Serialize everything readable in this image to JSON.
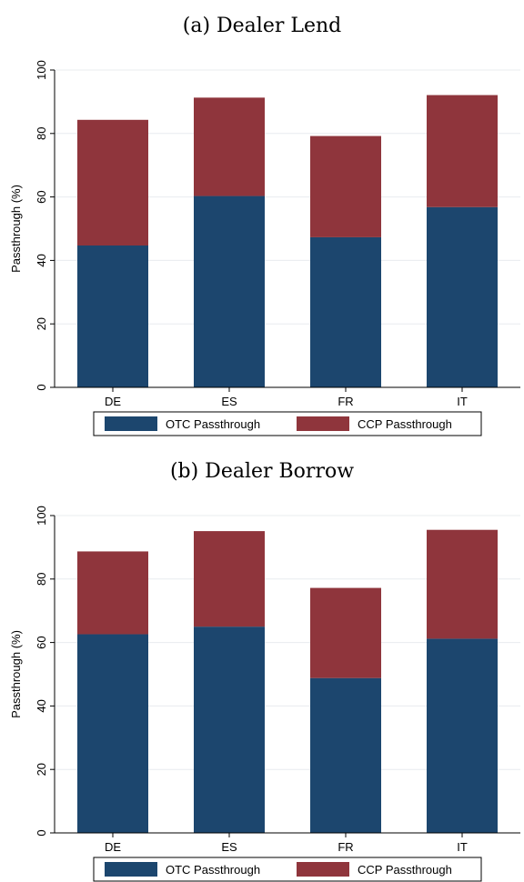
{
  "colors": {
    "otc": "#1c466e",
    "ccp": "#8f353c",
    "grid": "#e8ecef"
  },
  "chart_data": [
    {
      "type": "bar",
      "stacked": true,
      "title": "(a) Dealer Lend",
      "ylabel": "Passthrough (%)",
      "xlabel": "",
      "categories": [
        "DE",
        "ES",
        "FR",
        "IT"
      ],
      "ylim": [
        0,
        100
      ],
      "yticks": [
        0,
        20,
        40,
        60,
        80,
        100
      ],
      "grid": true,
      "legend_position": "bottom",
      "series": [
        {
          "name": "OTC Passthrough",
          "values": [
            44.7,
            60.3,
            47.3,
            56.8
          ]
        },
        {
          "name": "CCP Passthrough",
          "values": [
            39.6,
            31.0,
            31.9,
            35.3
          ]
        }
      ]
    },
    {
      "type": "bar",
      "stacked": true,
      "title": "(b) Dealer Borrow",
      "ylabel": "Passthrough (%)",
      "xlabel": "",
      "categories": [
        "DE",
        "ES",
        "FR",
        "IT"
      ],
      "ylim": [
        0,
        100
      ],
      "yticks": [
        0,
        20,
        40,
        60,
        80,
        100
      ],
      "grid": true,
      "legend_position": "bottom",
      "series": [
        {
          "name": "OTC Passthrough",
          "values": [
            62.6,
            65.0,
            48.8,
            61.2
          ]
        },
        {
          "name": "CCP Passthrough",
          "values": [
            26.1,
            30.1,
            28.4,
            34.3
          ]
        }
      ]
    }
  ]
}
